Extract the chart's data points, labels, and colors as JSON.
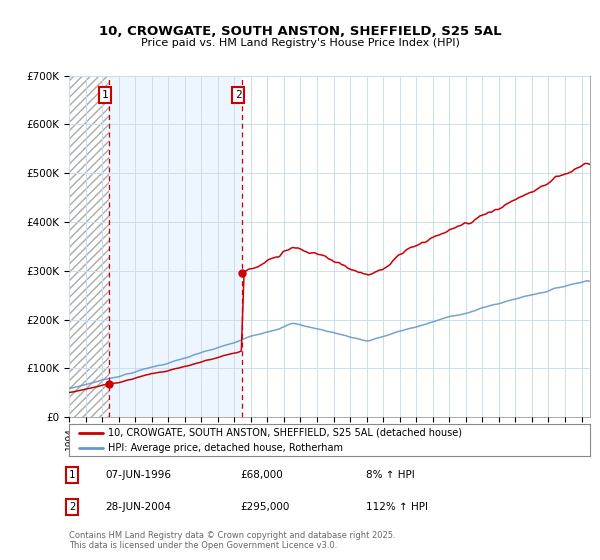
{
  "title": "10, CROWGATE, SOUTH ANSTON, SHEFFIELD, S25 5AL",
  "subtitle": "Price paid vs. HM Land Registry's House Price Index (HPI)",
  "legend_line1": "10, CROWGATE, SOUTH ANSTON, SHEFFIELD, S25 5AL (detached house)",
  "legend_line2": "HPI: Average price, detached house, Rotherham",
  "annotation1_date": "07-JUN-1996",
  "annotation1_price": "£68,000",
  "annotation1_hpi": "8% ↑ HPI",
  "annotation2_date": "28-JUN-2004",
  "annotation2_price": "£295,000",
  "annotation2_hpi": "112% ↑ HPI",
  "footnote": "Contains HM Land Registry data © Crown copyright and database right 2025.\nThis data is licensed under the Open Government Licence v3.0.",
  "sale1_x": 1996.44,
  "sale1_y": 68000,
  "sale2_x": 2004.49,
  "sale2_y": 295000,
  "ylim": [
    0,
    700000
  ],
  "xlim_start": 1994.0,
  "xlim_end": 2025.5,
  "red_color": "#cc0000",
  "blue_color": "#6699cc",
  "bg_between": "#ddeeff",
  "grid_color": "#ccddee"
}
